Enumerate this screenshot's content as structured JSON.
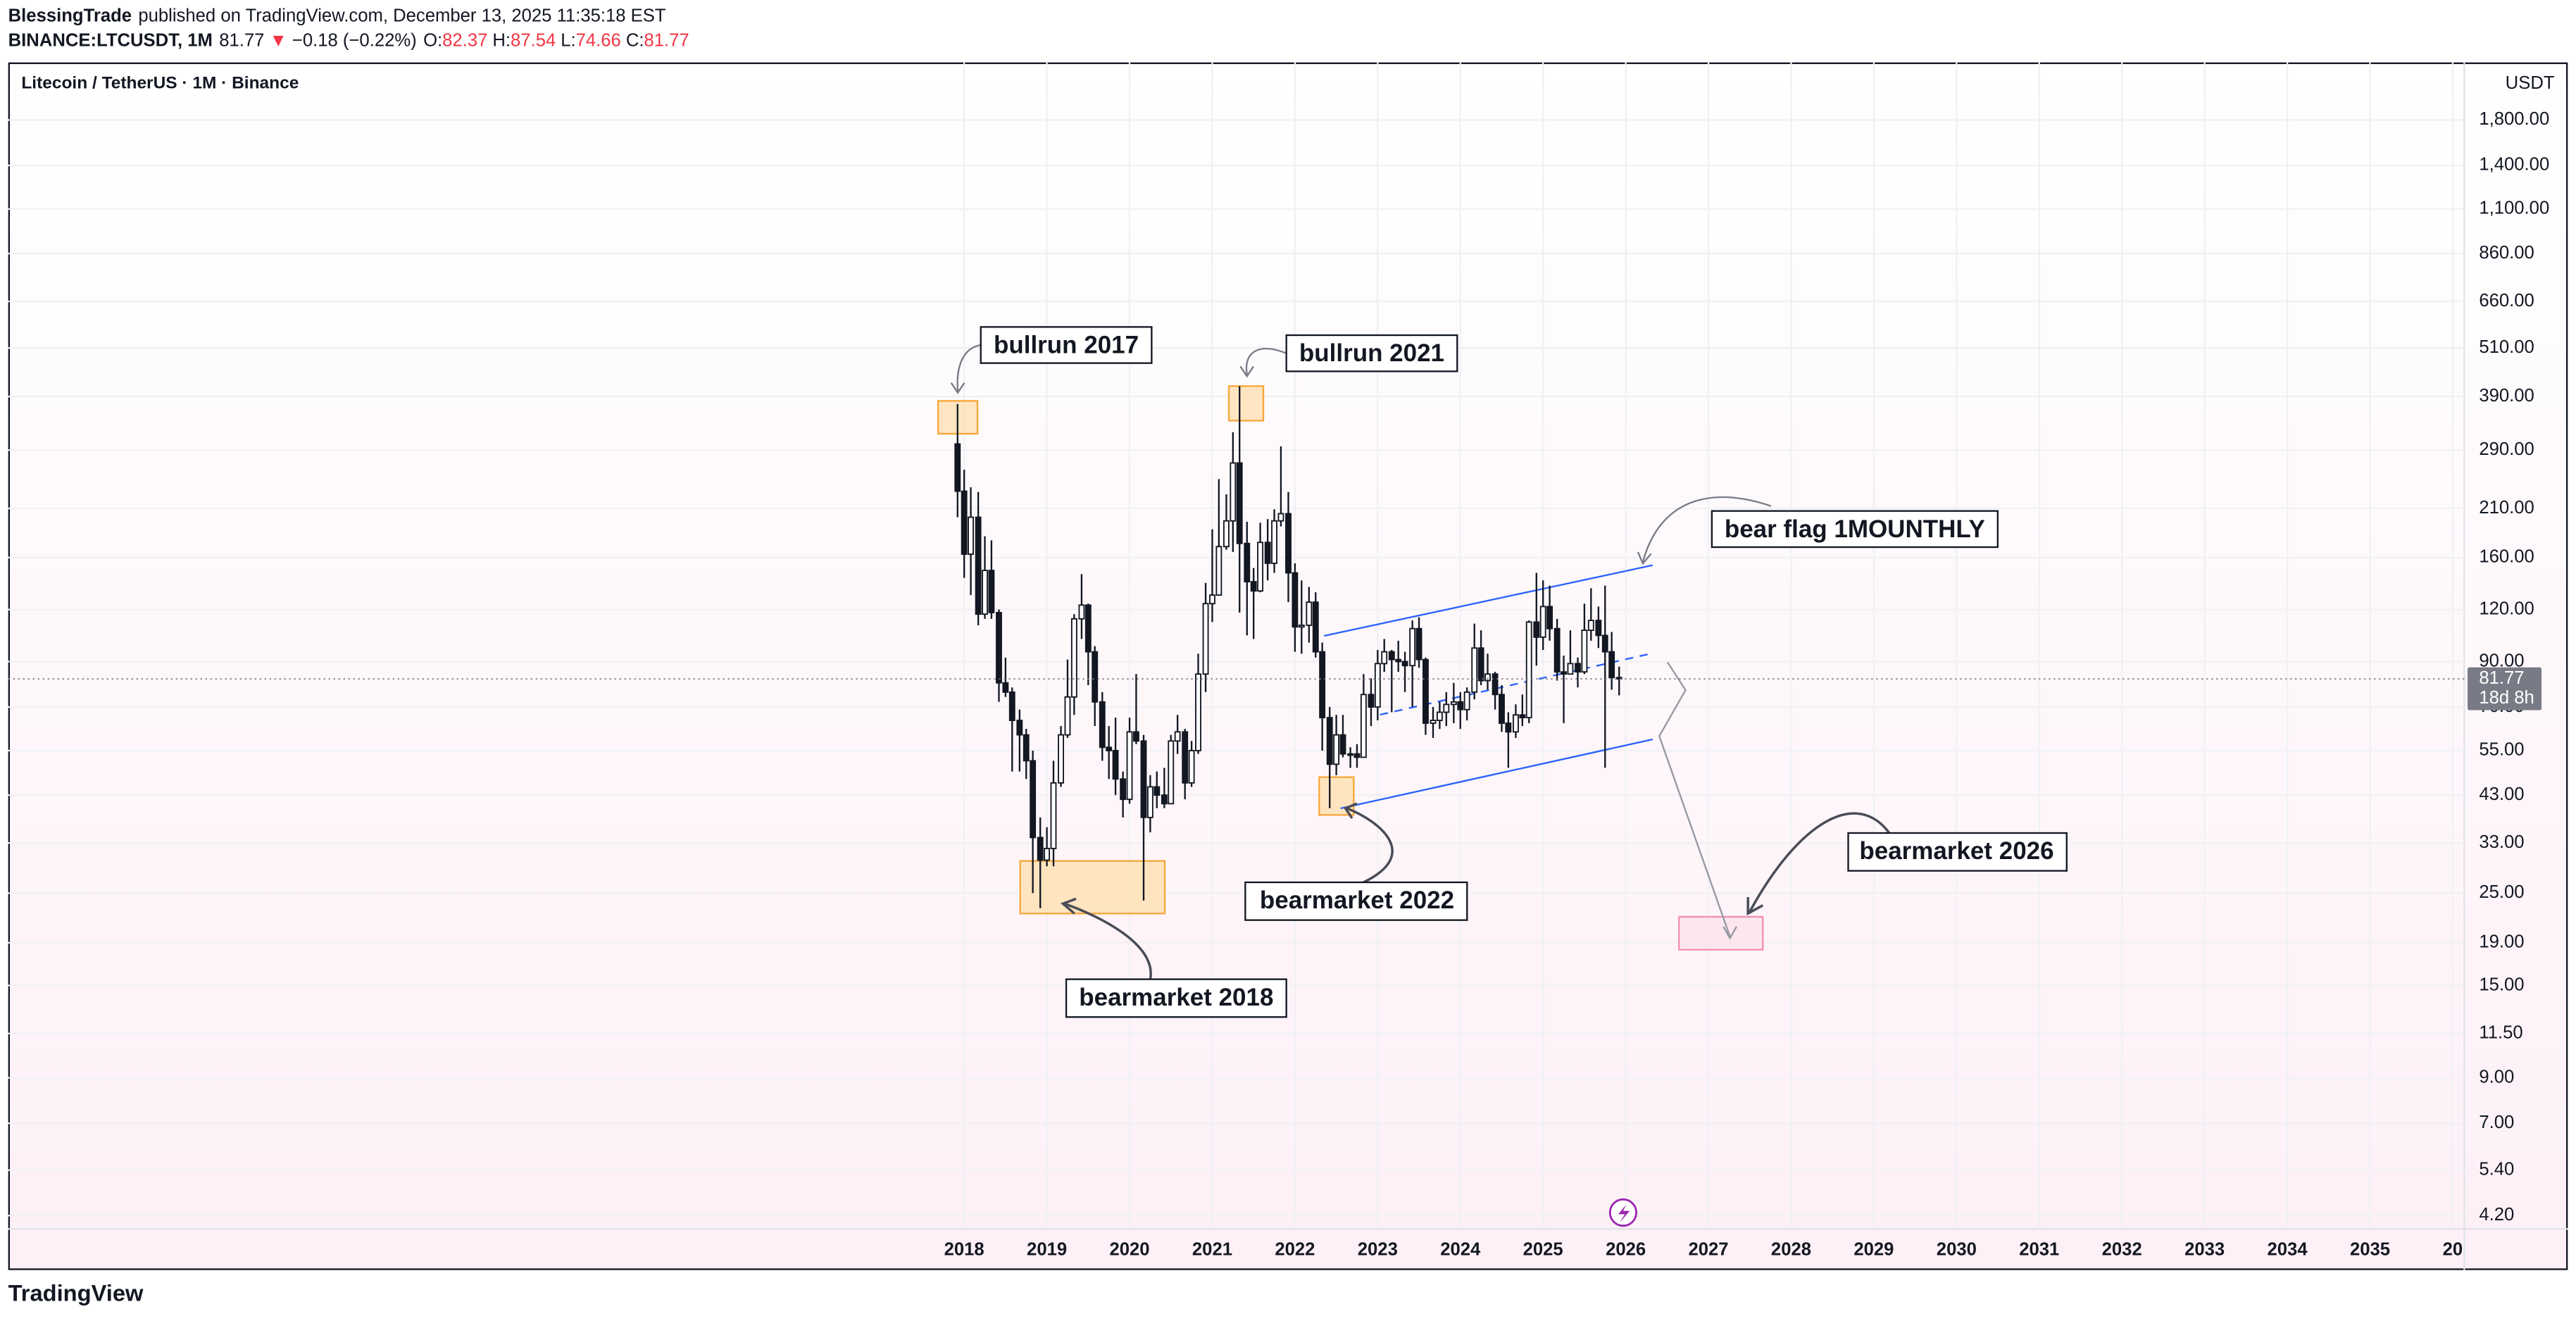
{
  "header": {
    "author": "BlessingTrade",
    "published": "published on TradingView.com, December 13, 2025 11:35:18 EST",
    "symbol": "BINANCE:LTCUSDT, 1M",
    "direction": "▼",
    "change": "−0.18 (−0.22%)",
    "ohlc_labels": [
      "O:",
      "H:",
      "L:",
      "C:"
    ]
  },
  "footer": {
    "logo": "TradingView"
  },
  "chart_data": {
    "type": "candlestick",
    "title": "Litecoin / TetherUS · 1M · Binance",
    "y_axis_label": "USDT",
    "price_countdown": "18d 8h",
    "log_scale": true,
    "grid": true,
    "up_color": "#ffffff",
    "down_color": "#131722",
    "edge_color": "#131722",
    "annotations": [
      "bullrun 2017",
      "bullrun 2021",
      "bear flag 1MOUNTHLY",
      "bearmarket 2018",
      "bearmarket 2022",
      "bearmarket 2026"
    ],
    "x": [
      2017.92,
      2018.0,
      2018.08,
      2018.17,
      2018.25,
      2018.33,
      2018.42,
      2018.5,
      2018.58,
      2018.67,
      2018.75,
      2018.83,
      2018.92,
      2019.0,
      2019.08,
      2019.17,
      2019.25,
      2019.33,
      2019.42,
      2019.5,
      2019.58,
      2019.67,
      2019.75,
      2019.83,
      2019.92,
      2020.0,
      2020.08,
      2020.17,
      2020.25,
      2020.33,
      2020.42,
      2020.5,
      2020.58,
      2020.67,
      2020.75,
      2020.83,
      2020.92,
      2021.0,
      2021.08,
      2021.17,
      2021.25,
      2021.33,
      2021.42,
      2021.5,
      2021.58,
      2021.67,
      2021.75,
      2021.83,
      2021.92,
      2022.0,
      2022.08,
      2022.17,
      2022.25,
      2022.33,
      2022.42,
      2022.5,
      2022.58,
      2022.67,
      2022.75,
      2022.83,
      2022.92,
      2023.0,
      2023.08,
      2023.17,
      2023.25,
      2023.33,
      2023.42,
      2023.5,
      2023.58,
      2023.67,
      2023.75,
      2023.83,
      2023.92,
      2024.0,
      2024.08,
      2024.17,
      2024.25,
      2024.33,
      2024.42,
      2024.5,
      2024.58,
      2024.67,
      2024.75,
      2024.83,
      2024.92,
      2025.0,
      2025.08,
      2025.17,
      2025.25,
      2025.33,
      2025.42,
      2025.5,
      2025.58,
      2025.67,
      2025.75,
      2025.83,
      2025.92
    ],
    "candles": {
      "open": [
        300,
        231,
        163,
        200,
        117,
        149,
        118,
        80,
        76,
        65,
        60,
        52,
        34,
        30,
        32,
        46,
        60,
        74,
        114,
        123,
        95,
        72,
        56,
        55,
        47,
        42,
        61,
        58,
        38,
        45,
        43,
        41,
        58,
        61,
        46,
        55,
        84,
        124,
        130,
        170,
        196,
        270,
        173,
        140,
        133,
        174,
        155,
        196,
        204,
        147,
        109,
        110,
        125,
        95,
        66,
        51,
        60,
        54,
        54,
        53,
        75,
        70,
        89,
        95,
        91,
        90,
        88,
        108,
        91,
        64,
        65,
        68,
        71,
        72,
        69,
        76,
        97,
        81,
        84,
        75,
        64,
        61,
        67,
        66,
        112,
        103,
        122,
        108,
        85,
        84,
        89,
        85,
        107,
        113,
        104,
        95,
        82.37
      ],
      "high": [
        374,
        260,
        236,
        230,
        180,
        176,
        120,
        92,
        78,
        69,
        62,
        55,
        38,
        36,
        52,
        63,
        91,
        117,
        146,
        124,
        98,
        76,
        63,
        66,
        49,
        66,
        84,
        60,
        48,
        49,
        50,
        60,
        67,
        62,
        58,
        94,
        139,
        187,
        247,
        227,
        320,
        413,
        195,
        151,
        194,
        198,
        209,
        296,
        230,
        155,
        141,
        136,
        132,
        100,
        70,
        67,
        67,
        56,
        57,
        84,
        82,
        96,
        102,
        96,
        101,
        95,
        113,
        115,
        92,
        70,
        72,
        76,
        80,
        76,
        78,
        111,
        107,
        94,
        85,
        79,
        68,
        71,
        75,
        113,
        147,
        141,
        137,
        114,
        93,
        107,
        92,
        124,
        135,
        122,
        137,
        106,
        87.54
      ],
      "low": [
        200,
        143,
        130,
        110,
        114,
        114,
        72,
        74,
        49,
        49,
        47,
        25,
        23,
        29,
        29,
        45,
        59,
        67,
        102,
        79,
        63,
        52,
        47,
        43,
        38,
        41,
        57,
        24,
        35,
        40,
        40,
        41,
        54,
        42,
        45,
        54,
        76,
        112,
        131,
        167,
        165,
        118,
        104,
        102,
        132,
        141,
        147,
        190,
        125,
        95,
        94,
        100,
        92,
        55,
        40,
        48,
        53,
        50,
        50,
        53,
        63,
        65,
        85,
        68,
        85,
        76,
        70,
        87,
        60,
        59,
        62,
        63,
        64,
        62,
        65,
        73,
        79,
        77,
        69,
        61,
        50,
        59,
        63,
        64,
        88,
        96,
        101,
        81,
        64,
        84,
        78,
        84,
        101,
        97,
        50,
        77,
        74.66
      ],
      "close": [
        231,
        163,
        200,
        117,
        149,
        118,
        80,
        76,
        65,
        60,
        52,
        34,
        30,
        32,
        46,
        60,
        74,
        114,
        123,
        95,
        72,
        56,
        55,
        47,
        42,
        61,
        58,
        38,
        45,
        43,
        41,
        58,
        61,
        46,
        55,
        84,
        124,
        130,
        170,
        196,
        270,
        173,
        140,
        133,
        174,
        155,
        196,
        204,
        147,
        109,
        110,
        125,
        95,
        66,
        51,
        60,
        54,
        54,
        53,
        75,
        70,
        89,
        95,
        91,
        90,
        88,
        108,
        91,
        64,
        65,
        68,
        71,
        72,
        69,
        76,
        97,
        81,
        84,
        75,
        64,
        61,
        67,
        66,
        112,
        103,
        122,
        108,
        85,
        84,
        89,
        85,
        107,
        113,
        104,
        95,
        82.37,
        81.77
      ]
    },
    "xlim": [
      2006.44,
      2036.14
    ],
    "xticks": [
      2018,
      2019,
      2020,
      2021,
      2022,
      2023,
      2024,
      2025,
      2026,
      2027,
      2028,
      2029,
      2030,
      2031,
      2032,
      2033,
      2034,
      2035,
      {
        "value": 2036,
        "label": "20"
      }
    ],
    "ylim": [
      3.9,
      2475
    ],
    "yticks": [
      {
        "value": 1800,
        "label": "1,800.00"
      },
      {
        "value": 1400,
        "label": "1,400.00"
      },
      {
        "value": 1100,
        "label": "1,100.00"
      },
      {
        "value": 860,
        "label": "860.00"
      },
      {
        "value": 660,
        "label": "660.00"
      },
      {
        "value": 510,
        "label": "510.00"
      },
      {
        "value": 390,
        "label": "390.00"
      },
      {
        "value": 290,
        "label": "290.00"
      },
      {
        "value": 210,
        "label": "210.00"
      },
      {
        "value": 160,
        "label": "160.00"
      },
      {
        "value": 120,
        "label": "120.00"
      },
      {
        "value": 90,
        "label": "90.00"
      },
      {
        "value": 70,
        "label": "70.00"
      },
      {
        "value": 55,
        "label": "55.00"
      },
      {
        "value": 43,
        "label": "43.00"
      },
      {
        "value": 33,
        "label": "33.00"
      },
      {
        "value": 25,
        "label": "25.00"
      },
      {
        "value": 19,
        "label": "19.00"
      },
      {
        "value": 15,
        "label": "15.00"
      },
      {
        "value": 11.5,
        "label": "11.50"
      },
      {
        "value": 9,
        "label": "9.00"
      },
      {
        "value": 7,
        "label": "7.00"
      },
      {
        "value": 5.4,
        "label": "5.40"
      },
      {
        "value": 4.2,
        "label": "4.20"
      }
    ]
  }
}
